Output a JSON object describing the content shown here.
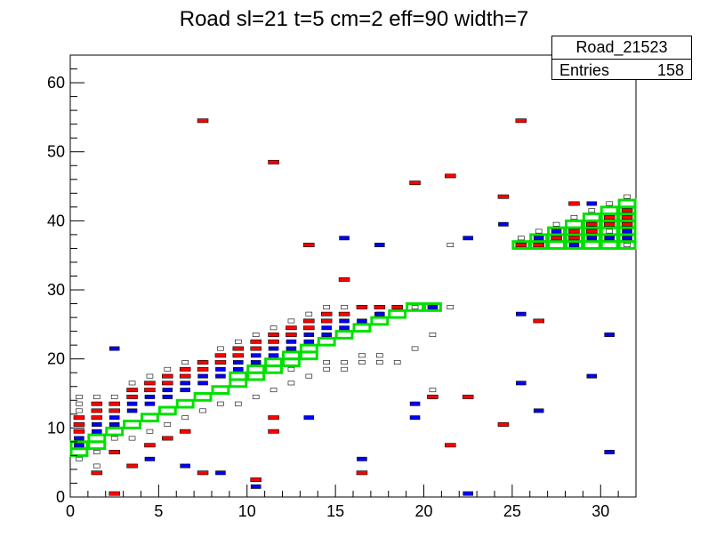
{
  "chart_data": {
    "type": "heatmap",
    "title": "Road sl=21 t=5 cm=2 eff=90 width=7",
    "xlim": [
      0,
      32
    ],
    "ylim": [
      0,
      64
    ],
    "x_ticks": [
      0,
      5,
      10,
      15,
      20,
      25,
      30
    ],
    "y_ticks": [
      0,
      10,
      20,
      30,
      40,
      50,
      60
    ],
    "stats_box": {
      "name": "Road_21523",
      "entries_label": "Entries",
      "entries_value": "158"
    },
    "colors": {
      "road": "#00e000",
      "red_cells": "#ff0000",
      "blue_cells": "#0000ff",
      "black_cells": "#000000"
    },
    "road_cells": [
      [
        0,
        6,
        7
      ],
      [
        1,
        7,
        8
      ],
      [
        2,
        9,
        9
      ],
      [
        3,
        10,
        10
      ],
      [
        4,
        11,
        11
      ],
      [
        5,
        12,
        12
      ],
      [
        6,
        13,
        13
      ],
      [
        7,
        14,
        14
      ],
      [
        8,
        15,
        15
      ],
      [
        9,
        16,
        17
      ],
      [
        10,
        17,
        18
      ],
      [
        11,
        18,
        19
      ],
      [
        12,
        19,
        20
      ],
      [
        13,
        20,
        21
      ],
      [
        14,
        22,
        22
      ],
      [
        15,
        23,
        23
      ],
      [
        16,
        24,
        24
      ],
      [
        17,
        25,
        25
      ],
      [
        18,
        26,
        26
      ],
      [
        19,
        27,
        27
      ],
      [
        20,
        27,
        27
      ],
      [
        25,
        36,
        36
      ],
      [
        26,
        36,
        37
      ],
      [
        27,
        36,
        38
      ],
      [
        28,
        36,
        39
      ],
      [
        29,
        36,
        40
      ],
      [
        30,
        36,
        41
      ],
      [
        31,
        36,
        42
      ]
    ],
    "red_cells": [
      [
        0,
        9
      ],
      [
        0,
        10
      ],
      [
        0,
        11
      ],
      [
        1,
        11
      ],
      [
        1,
        12
      ],
      [
        1,
        13
      ],
      [
        2,
        12
      ],
      [
        2,
        13
      ],
      [
        3,
        14
      ],
      [
        3,
        15
      ],
      [
        4,
        15
      ],
      [
        4,
        16
      ],
      [
        5,
        16
      ],
      [
        5,
        17
      ],
      [
        6,
        17
      ],
      [
        6,
        18
      ],
      [
        7,
        18
      ],
      [
        7,
        19
      ],
      [
        8,
        19
      ],
      [
        8,
        20
      ],
      [
        9,
        20
      ],
      [
        9,
        21
      ],
      [
        10,
        21
      ],
      [
        10,
        22
      ],
      [
        11,
        22
      ],
      [
        11,
        23
      ],
      [
        12,
        23
      ],
      [
        12,
        24
      ],
      [
        13,
        24
      ],
      [
        13,
        25
      ],
      [
        14,
        25
      ],
      [
        14,
        26
      ],
      [
        15,
        26
      ],
      [
        16,
        27
      ],
      [
        17,
        27
      ],
      [
        18,
        27
      ],
      [
        25,
        36
      ],
      [
        26,
        36
      ],
      [
        27,
        37
      ],
      [
        28,
        38
      ],
      [
        28,
        37
      ],
      [
        29,
        38
      ],
      [
        29,
        39
      ],
      [
        30,
        39
      ],
      [
        30,
        40
      ],
      [
        31,
        39
      ],
      [
        31,
        40
      ],
      [
        31,
        41
      ],
      [
        7,
        54
      ],
      [
        11,
        48
      ],
      [
        19,
        45
      ],
      [
        21,
        46
      ],
      [
        24,
        43
      ],
      [
        25,
        54
      ],
      [
        28,
        42
      ],
      [
        13,
        36
      ],
      [
        15,
        31
      ],
      [
        22,
        14
      ],
      [
        24,
        10
      ],
      [
        11,
        11
      ],
      [
        11,
        9
      ],
      [
        6,
        9
      ],
      [
        5,
        8
      ],
      [
        4,
        7
      ],
      [
        2,
        6
      ],
      [
        3,
        4
      ],
      [
        1,
        3
      ],
      [
        2,
        0
      ],
      [
        7,
        3
      ],
      [
        10,
        2
      ],
      [
        16,
        3
      ],
      [
        20,
        14
      ],
      [
        21,
        7
      ],
      [
        26,
        25
      ],
      [
        29,
        38
      ]
    ],
    "blue_cells": [
      [
        0,
        7
      ],
      [
        0,
        8
      ],
      [
        1,
        9
      ],
      [
        1,
        10
      ],
      [
        2,
        10
      ],
      [
        2,
        11
      ],
      [
        3,
        12
      ],
      [
        3,
        13
      ],
      [
        4,
        13
      ],
      [
        4,
        14
      ],
      [
        5,
        14
      ],
      [
        5,
        15
      ],
      [
        6,
        15
      ],
      [
        6,
        16
      ],
      [
        7,
        16
      ],
      [
        7,
        17
      ],
      [
        8,
        17
      ],
      [
        8,
        18
      ],
      [
        9,
        18
      ],
      [
        9,
        19
      ],
      [
        10,
        19
      ],
      [
        10,
        20
      ],
      [
        11,
        20
      ],
      [
        11,
        21
      ],
      [
        12,
        21
      ],
      [
        12,
        22
      ],
      [
        13,
        22
      ],
      [
        13,
        23
      ],
      [
        14,
        23
      ],
      [
        14,
        24
      ],
      [
        15,
        24
      ],
      [
        15,
        25
      ],
      [
        16,
        25
      ],
      [
        17,
        26
      ],
      [
        25,
        36
      ],
      [
        26,
        37
      ],
      [
        27,
        38
      ],
      [
        28,
        36
      ],
      [
        29,
        37
      ],
      [
        30,
        37
      ],
      [
        31,
        37
      ],
      [
        31,
        38
      ],
      [
        2,
        21
      ],
      [
        13,
        11
      ],
      [
        19,
        13
      ],
      [
        19,
        11
      ],
      [
        20,
        27
      ],
      [
        22,
        37
      ],
      [
        24,
        39
      ],
      [
        25,
        26
      ],
      [
        25,
        16
      ],
      [
        26,
        12
      ],
      [
        29,
        42
      ],
      [
        29,
        17
      ],
      [
        30,
        23
      ],
      [
        30,
        6
      ],
      [
        22,
        0
      ],
      [
        4,
        5
      ],
      [
        6,
        4
      ],
      [
        8,
        3
      ],
      [
        10,
        1
      ],
      [
        16,
        5
      ],
      [
        15,
        37
      ],
      [
        17,
        36
      ]
    ],
    "black_cells": [
      [
        0,
        13
      ],
      [
        0,
        12
      ],
      [
        0,
        14
      ],
      [
        1,
        14
      ],
      [
        2,
        14
      ],
      [
        3,
        16
      ],
      [
        4,
        17
      ],
      [
        5,
        18
      ],
      [
        6,
        19
      ],
      [
        7,
        19
      ],
      [
        8,
        21
      ],
      [
        9,
        22
      ],
      [
        10,
        23
      ],
      [
        11,
        24
      ],
      [
        12,
        25
      ],
      [
        13,
        26
      ],
      [
        14,
        27
      ],
      [
        15,
        27
      ],
      [
        16,
        27
      ],
      [
        17,
        26
      ],
      [
        18,
        27
      ],
      [
        19,
        27
      ],
      [
        0,
        5
      ],
      [
        1,
        4
      ],
      [
        1,
        6
      ],
      [
        2,
        8
      ],
      [
        3,
        8
      ],
      [
        4,
        9
      ],
      [
        5,
        10
      ],
      [
        6,
        11
      ],
      [
        7,
        12
      ],
      [
        8,
        13
      ],
      [
        9,
        13
      ],
      [
        10,
        14
      ],
      [
        11,
        15
      ],
      [
        12,
        16
      ],
      [
        13,
        17
      ],
      [
        14,
        18
      ],
      [
        15,
        18
      ],
      [
        16,
        19
      ],
      [
        17,
        19
      ],
      [
        18,
        19
      ],
      [
        12,
        18
      ],
      [
        14,
        19
      ],
      [
        15,
        19
      ],
      [
        16,
        20
      ],
      [
        17,
        20
      ],
      [
        19,
        21
      ],
      [
        20,
        23
      ],
      [
        21,
        27
      ],
      [
        25,
        37
      ],
      [
        26,
        38
      ],
      [
        27,
        39
      ],
      [
        28,
        40
      ],
      [
        29,
        41
      ],
      [
        30,
        42
      ],
      [
        31,
        43
      ],
      [
        31,
        36
      ],
      [
        30,
        38
      ],
      [
        29,
        39
      ],
      [
        21,
        36
      ],
      [
        20,
        15
      ],
      [
        20,
        14
      ]
    ]
  }
}
